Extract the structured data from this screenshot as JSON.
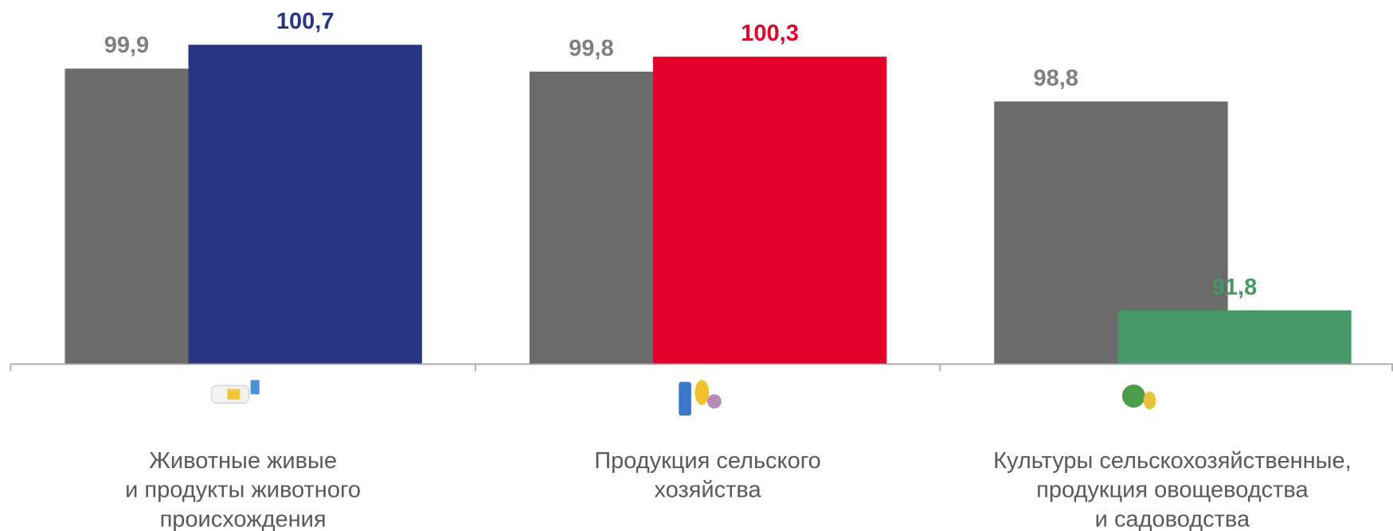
{
  "chart_data": {
    "type": "bar",
    "categories": [
      "Животные живые\nи продукты животного\nпроисхождения",
      "Продукция сельского\nхозяйства",
      "Культуры сельскохозяйственные,\nпродукция овощеводства\nи садоводства"
    ],
    "series": [
      {
        "color": "#6b6b6b",
        "label_color": "#808080",
        "values": [
          99.9,
          99.8,
          98.8
        ],
        "value_labels": [
          "99,9",
          "99,8",
          "98,8"
        ]
      },
      {
        "colors": [
          "#283583",
          "#e2002b",
          "#449966"
        ],
        "values": [
          100.7,
          100.3,
          91.8
        ],
        "value_labels": [
          "100,7",
          "100,3",
          "91,8"
        ]
      }
    ],
    "ylim": [
      90,
      102.2
    ],
    "grid": false
  }
}
